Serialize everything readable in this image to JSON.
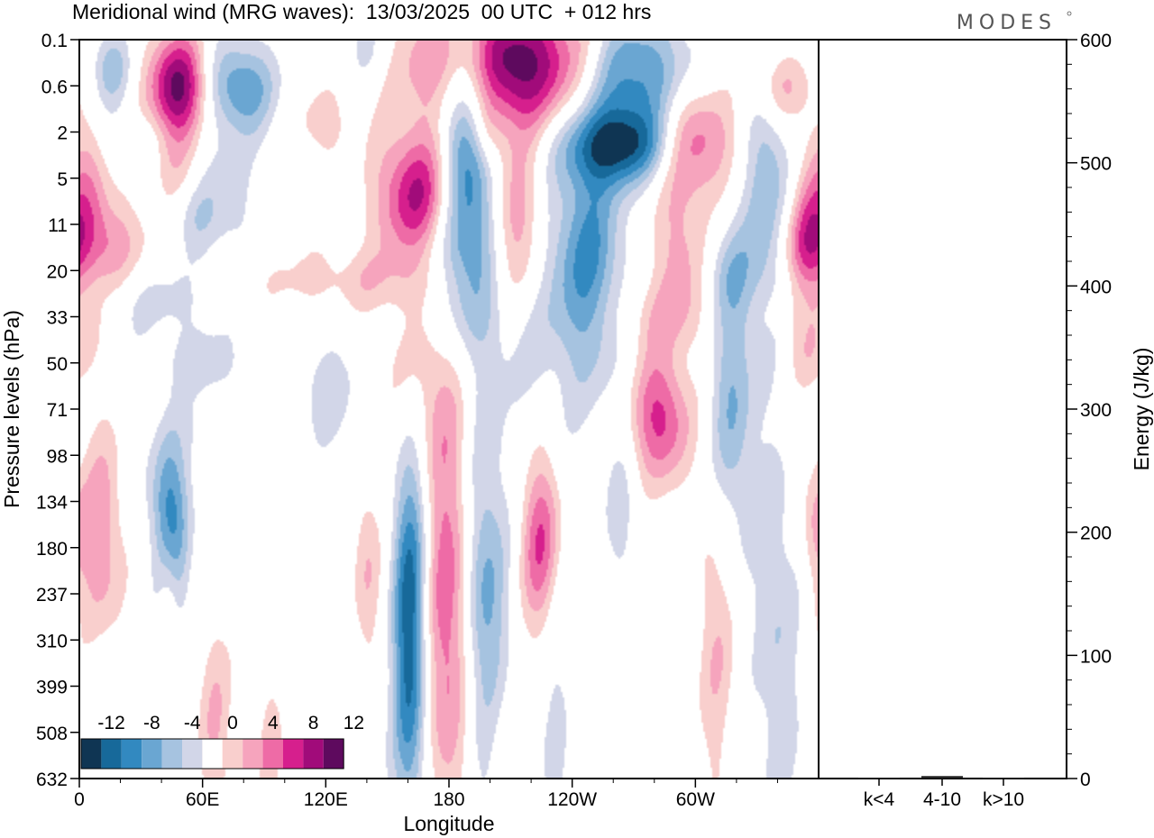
{
  "brand": "MODES",
  "chart_data": [
    {
      "type": "heatmap",
      "title": "Meridional wind (MRG waves):  13/03/2025  00 UTC  + 012 hrs",
      "xlabel": "Longitude",
      "ylabel": "Pressure levels (hPa)",
      "x_ticks": [
        "0",
        "60E",
        "120E",
        "180",
        "120W",
        "60W"
      ],
      "x_tick_degrees": [
        0,
        60,
        120,
        180,
        240,
        300
      ],
      "xlim": [
        0,
        360
      ],
      "y_ticks": [
        "0.1",
        "0.6",
        "2",
        "5",
        "11",
        "20",
        "33",
        "50",
        "71",
        "98",
        "134",
        "180",
        "237",
        "310",
        "399",
        "508",
        "632"
      ],
      "y_axis": "pressure levels, top to bottom",
      "colorbar": {
        "labels": [
          "-12",
          "-8",
          "-4",
          "0",
          "4",
          "8",
          "12"
        ],
        "levels": [
          -14,
          -12,
          -10,
          -8,
          -6,
          -4,
          -2,
          2,
          4,
          6,
          8,
          10,
          12,
          14
        ],
        "colors": [
          "#0f3553",
          "#17699a",
          "#3289c0",
          "#6aa6d2",
          "#a6c3e0",
          "#d2d6e8",
          "#ffffff",
          "#f9cfcd",
          "#f6a4bd",
          "#ee6ba6",
          "#d61f8d",
          "#a10b7a",
          "#5e0a5e"
        ],
        "placement": "bottom-left inside plot"
      },
      "features": [
        {
          "lon": 15,
          "level": 0.6,
          "value": -5,
          "sx": 7,
          "sy": 0.6
        },
        {
          "lon": 48,
          "level": 1.0,
          "value": 13,
          "sx": 10,
          "sy": 0.8
        },
        {
          "lon": 78,
          "level": 1.0,
          "value": -8,
          "sx": 12,
          "sy": 0.7
        },
        {
          "lon": 140,
          "level": 0.1,
          "value": -3,
          "sx": 8,
          "sy": 0.6
        },
        {
          "lon": 208,
          "level": 0.5,
          "value": 14,
          "sx": 30,
          "sy": 1.0
        },
        {
          "lon": 190,
          "level": 1.3,
          "value": -9,
          "sx": 10,
          "sy": 1.4
        },
        {
          "lon": 270,
          "level": 0.8,
          "value": -10,
          "sx": 18,
          "sy": 1.0
        },
        {
          "lon": 340,
          "level": 1.0,
          "value": 6,
          "sx": 10,
          "sy": 0.6
        },
        {
          "lon": 30,
          "level": 2.1,
          "value": -2,
          "sx": 10,
          "sy": 0.4
        },
        {
          "lon": 118,
          "level": 1.8,
          "value": 3,
          "sx": 10,
          "sy": 0.6
        },
        {
          "lon": 198,
          "level": 2.0,
          "value": 5,
          "sx": 6,
          "sy": 0.6
        },
        {
          "lon": 265,
          "level": 2.3,
          "value": -11,
          "sx": 20,
          "sy": 0.6
        },
        {
          "lon": 298,
          "level": 2.2,
          "value": 9,
          "sx": 15,
          "sy": 0.8
        },
        {
          "lon": 335,
          "level": 3.0,
          "value": -6,
          "sx": 8,
          "sy": 2.2
        },
        {
          "lon": 5,
          "level": 3.1,
          "value": 4,
          "sx": 6,
          "sy": 1.0
        },
        {
          "lon": 45,
          "level": 2.6,
          "value": 3,
          "sx": 8,
          "sy": 0.7
        },
        {
          "lon": 70,
          "level": 3.5,
          "value": -3,
          "sx": 12,
          "sy": 1.2
        },
        {
          "lon": 165,
          "level": 3.4,
          "value": 11,
          "sx": 14,
          "sy": 1.0
        },
        {
          "lon": 190,
          "level": 3.8,
          "value": -7,
          "sx": 10,
          "sy": 1.6
        },
        {
          "lon": 212,
          "level": 4.0,
          "value": 7,
          "sx": 10,
          "sy": 1.3
        },
        {
          "lon": 248,
          "level": 4.6,
          "value": -7,
          "sx": 12,
          "sy": 1.8
        },
        {
          "lon": 295,
          "level": 4.6,
          "value": 5,
          "sx": 12,
          "sy": 1.1
        },
        {
          "lon": 355,
          "level": 3.7,
          "value": 4,
          "sx": 6,
          "sy": 1.2
        },
        {
          "lon": 56,
          "level": 3.8,
          "value": -2,
          "sx": 8,
          "sy": 0.5
        },
        {
          "lon": 12,
          "level": 4.5,
          "value": 6,
          "sx": 14,
          "sy": 0.8
        },
        {
          "lon": 180,
          "level": 4.8,
          "value": -3,
          "sx": 12,
          "sy": 1.2
        },
        {
          "lon": 315,
          "level": 5.0,
          "value": -4,
          "sx": 10,
          "sy": 0.8
        },
        {
          "lon": 352,
          "level": 4.5,
          "value": 4,
          "sx": 8,
          "sy": 0.7
        },
        {
          "lon": 130,
          "level": 5.2,
          "value": 3,
          "sx": 40,
          "sy": 0.5
        },
        {
          "lon": 35,
          "level": 5.6,
          "value": -3,
          "sx": 22,
          "sy": 0.6
        },
        {
          "lon": 5,
          "level": 5.9,
          "value": 2,
          "sx": 6,
          "sy": 0.6
        },
        {
          "lon": 220,
          "level": 5.8,
          "value": -3,
          "sx": 30,
          "sy": 1.8
        },
        {
          "lon": 282,
          "level": 6.0,
          "value": 3,
          "sx": 18,
          "sy": 0.6
        },
        {
          "lon": 345,
          "level": 5.9,
          "value": 2,
          "sx": 8,
          "sy": 0.4
        },
        {
          "lon": 60,
          "level": 7.0,
          "value": -3,
          "sx": 14,
          "sy": 0.5
        },
        {
          "lon": 165,
          "level": 7.3,
          "value": 4,
          "sx": 15,
          "sy": 1.4
        },
        {
          "lon": 283,
          "level": 8.2,
          "value": 9,
          "sx": 10,
          "sy": 1.0
        },
        {
          "lon": 318,
          "level": 8.0,
          "value": -6,
          "sx": 8,
          "sy": 2.2
        },
        {
          "lon": 355,
          "level": 6.8,
          "value": 3,
          "sx": 8,
          "sy": 0.6
        },
        {
          "lon": 120,
          "level": 7.6,
          "value": -3,
          "sx": 15,
          "sy": 1.0
        },
        {
          "lon": 60,
          "level": 8.5,
          "value": -2,
          "sx": 8,
          "sy": 0.6
        },
        {
          "lon": 10,
          "level": 11.0,
          "value": 6,
          "sx": 8,
          "sy": 1.8
        },
        {
          "lon": 45,
          "level": 11.2,
          "value": -7,
          "sx": 6,
          "sy": 1.5
        },
        {
          "lon": 42,
          "level": 9.8,
          "value": -4,
          "sx": 8,
          "sy": 1.0
        },
        {
          "lon": 43,
          "level": 12.0,
          "value": 5,
          "sx": 4,
          "sy": 0.9
        },
        {
          "lon": 96,
          "level": 9.4,
          "value": 2,
          "sx": 12,
          "sy": 0.7
        },
        {
          "lon": 140,
          "level": 11.5,
          "value": 4,
          "sx": 5,
          "sy": 1.5
        },
        {
          "lon": 161,
          "level": 12.8,
          "value": -12,
          "sx": 6,
          "sy": 3.0
        },
        {
          "lon": 180,
          "level": 12.4,
          "value": 8,
          "sx": 9,
          "sy": 3.3
        },
        {
          "lon": 197,
          "level": 12.7,
          "value": -8,
          "sx": 8,
          "sy": 3.0
        },
        {
          "lon": 202,
          "level": 15.0,
          "value": 3,
          "sx": 8,
          "sy": 1.2
        },
        {
          "lon": 225,
          "level": 10.9,
          "value": 8,
          "sx": 7,
          "sy": 1.4
        },
        {
          "lon": 233,
          "level": 15.6,
          "value": -3,
          "sx": 5,
          "sy": 3.0
        },
        {
          "lon": 265,
          "level": 10.4,
          "value": -3,
          "sx": 6,
          "sy": 1.3
        },
        {
          "lon": 310,
          "level": 12.8,
          "value": 4,
          "sx": 7,
          "sy": 2.5
        },
        {
          "lon": 340,
          "level": 13.0,
          "value": -4,
          "sx": 8,
          "sy": 3.0
        },
        {
          "lon": 358,
          "level": 10.6,
          "value": 3,
          "sx": 4,
          "sy": 0.9
        },
        {
          "lon": 65,
          "level": 14.8,
          "value": 4,
          "sx": 6,
          "sy": 1.8
        },
        {
          "lon": 100,
          "level": 13.0,
          "value": -2,
          "sx": 5,
          "sy": 2.0
        },
        {
          "lon": 10,
          "level": 14.5,
          "value": -2,
          "sx": 6,
          "sy": 2.0
        },
        {
          "lon": 95,
          "level": 15.2,
          "value": 3,
          "sx": 6,
          "sy": 1.5
        }
      ],
      "energy_panel": {
        "ylabel": "Energy (J/kg)",
        "ylim": [
          0,
          600
        ],
        "y_ticks": [
          "0",
          "100",
          "200",
          "300",
          "400",
          "500",
          "600"
        ],
        "categories": [
          "k<4",
          "4-10",
          "k>10"
        ],
        "values": [
          0.5,
          2,
          0.5
        ]
      }
    }
  ]
}
